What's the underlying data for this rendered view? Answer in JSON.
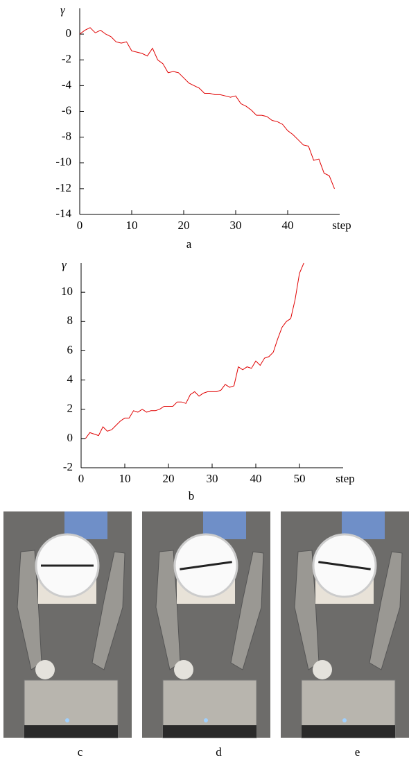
{
  "chart_data": [
    {
      "type": "line",
      "ylabel": "γ",
      "xlabel": "step",
      "caption": "a",
      "color": "#e00000",
      "x": [
        0,
        1,
        2,
        3,
        4,
        5,
        6,
        7,
        8,
        9,
        10,
        11,
        12,
        13,
        14,
        15,
        16,
        17,
        18,
        19,
        20,
        21,
        22,
        23,
        24,
        25,
        26,
        27,
        28,
        29,
        30,
        31,
        32,
        33,
        34,
        35,
        36,
        37,
        38,
        39,
        40,
        41,
        42,
        43,
        44,
        45,
        46,
        47,
        48,
        49
      ],
      "values": [
        0,
        0.3,
        0.5,
        0.1,
        0.3,
        0,
        -0.2,
        -0.6,
        -0.7,
        -0.6,
        -1.3,
        -1.4,
        -1.5,
        -1.7,
        -1.1,
        -2.0,
        -2.3,
        -3.0,
        -2.9,
        -3.0,
        -3.4,
        -3.8,
        -4.0,
        -4.2,
        -4.6,
        -4.6,
        -4.7,
        -4.7,
        -4.8,
        -4.9,
        -4.8,
        -5.4,
        -5.6,
        -5.9,
        -6.3,
        -6.3,
        -6.4,
        -6.7,
        -6.8,
        -7.0,
        -7.5,
        -7.8,
        -8.2,
        -8.6,
        -8.7,
        -9.8,
        -9.7,
        -10.8,
        -11.0,
        -12.0
      ],
      "xlim": [
        0,
        50
      ],
      "xticks": [
        0,
        10,
        20,
        30,
        40
      ],
      "ylim": [
        -14,
        2
      ],
      "yticks": [
        0,
        -2,
        -4,
        -6,
        -8,
        -10,
        -12,
        -14
      ]
    },
    {
      "type": "line",
      "ylabel": "γ",
      "xlabel": "step",
      "caption": "b",
      "color": "#e00000",
      "x": [
        1,
        2,
        3,
        4,
        5,
        6,
        7,
        8,
        9,
        10,
        11,
        12,
        13,
        14,
        15,
        16,
        17,
        18,
        19,
        20,
        21,
        22,
        23,
        24,
        25,
        26,
        27,
        28,
        29,
        30,
        31,
        32,
        33,
        34,
        35,
        36,
        37,
        38,
        39,
        40,
        41,
        42,
        43,
        44,
        45,
        46,
        47,
        48,
        49,
        50,
        51
      ],
      "values": [
        0,
        0.4,
        0.3,
        0.2,
        0.8,
        0.5,
        0.6,
        0.9,
        1.2,
        1.4,
        1.4,
        1.9,
        1.8,
        2.0,
        1.8,
        1.9,
        1.9,
        2.0,
        2.2,
        2.2,
        2.2,
        2.5,
        2.5,
        2.4,
        3.0,
        3.2,
        2.9,
        3.1,
        3.2,
        3.2,
        3.2,
        3.3,
        3.7,
        3.5,
        3.6,
        4.9,
        4.7,
        4.9,
        4.8,
        5.3,
        5.0,
        5.5,
        5.6,
        5.9,
        6.8,
        7.6,
        8.0,
        8.2,
        9.5,
        11.3,
        12.0
      ],
      "xlim": [
        0,
        60
      ],
      "xticks": [
        0,
        10,
        20,
        30,
        40,
        50
      ],
      "ylim": [
        -2,
        12
      ],
      "yticks": [
        -2,
        0,
        2,
        4,
        6,
        8,
        10
      ]
    }
  ],
  "photos": [
    {
      "caption": "c"
    },
    {
      "caption": "d"
    },
    {
      "caption": "e"
    }
  ]
}
